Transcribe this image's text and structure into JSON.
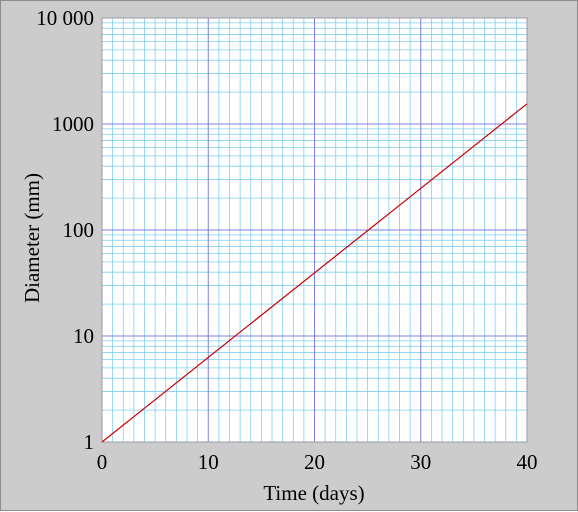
{
  "chart_data": {
    "type": "line",
    "title": "",
    "xlabel": "Time (days)",
    "ylabel": "Diameter (mm)",
    "x_scale": "linear",
    "y_scale": "log",
    "xlim": [
      0,
      40
    ],
    "ylim": [
      1,
      10000
    ],
    "x_ticks": [
      0,
      10,
      20,
      30,
      40
    ],
    "x_tick_labels": [
      "0",
      "10",
      "20",
      "30",
      "40"
    ],
    "y_ticks": [
      1,
      10,
      100,
      1000,
      10000
    ],
    "y_tick_labels": [
      "1",
      "10",
      "100",
      "1000",
      "10 000"
    ],
    "grid": true,
    "legend": "none",
    "colors": {
      "background": "#cccccc",
      "plot_background": "#ffffff",
      "minor_grid": "#7fcfef",
      "major_grid": "#7f7fdf",
      "axis": "#9999aa",
      "line": "#cc0000"
    },
    "series": [
      {
        "x": [
          0,
          40
        ],
        "y": [
          1,
          1550
        ]
      }
    ]
  }
}
